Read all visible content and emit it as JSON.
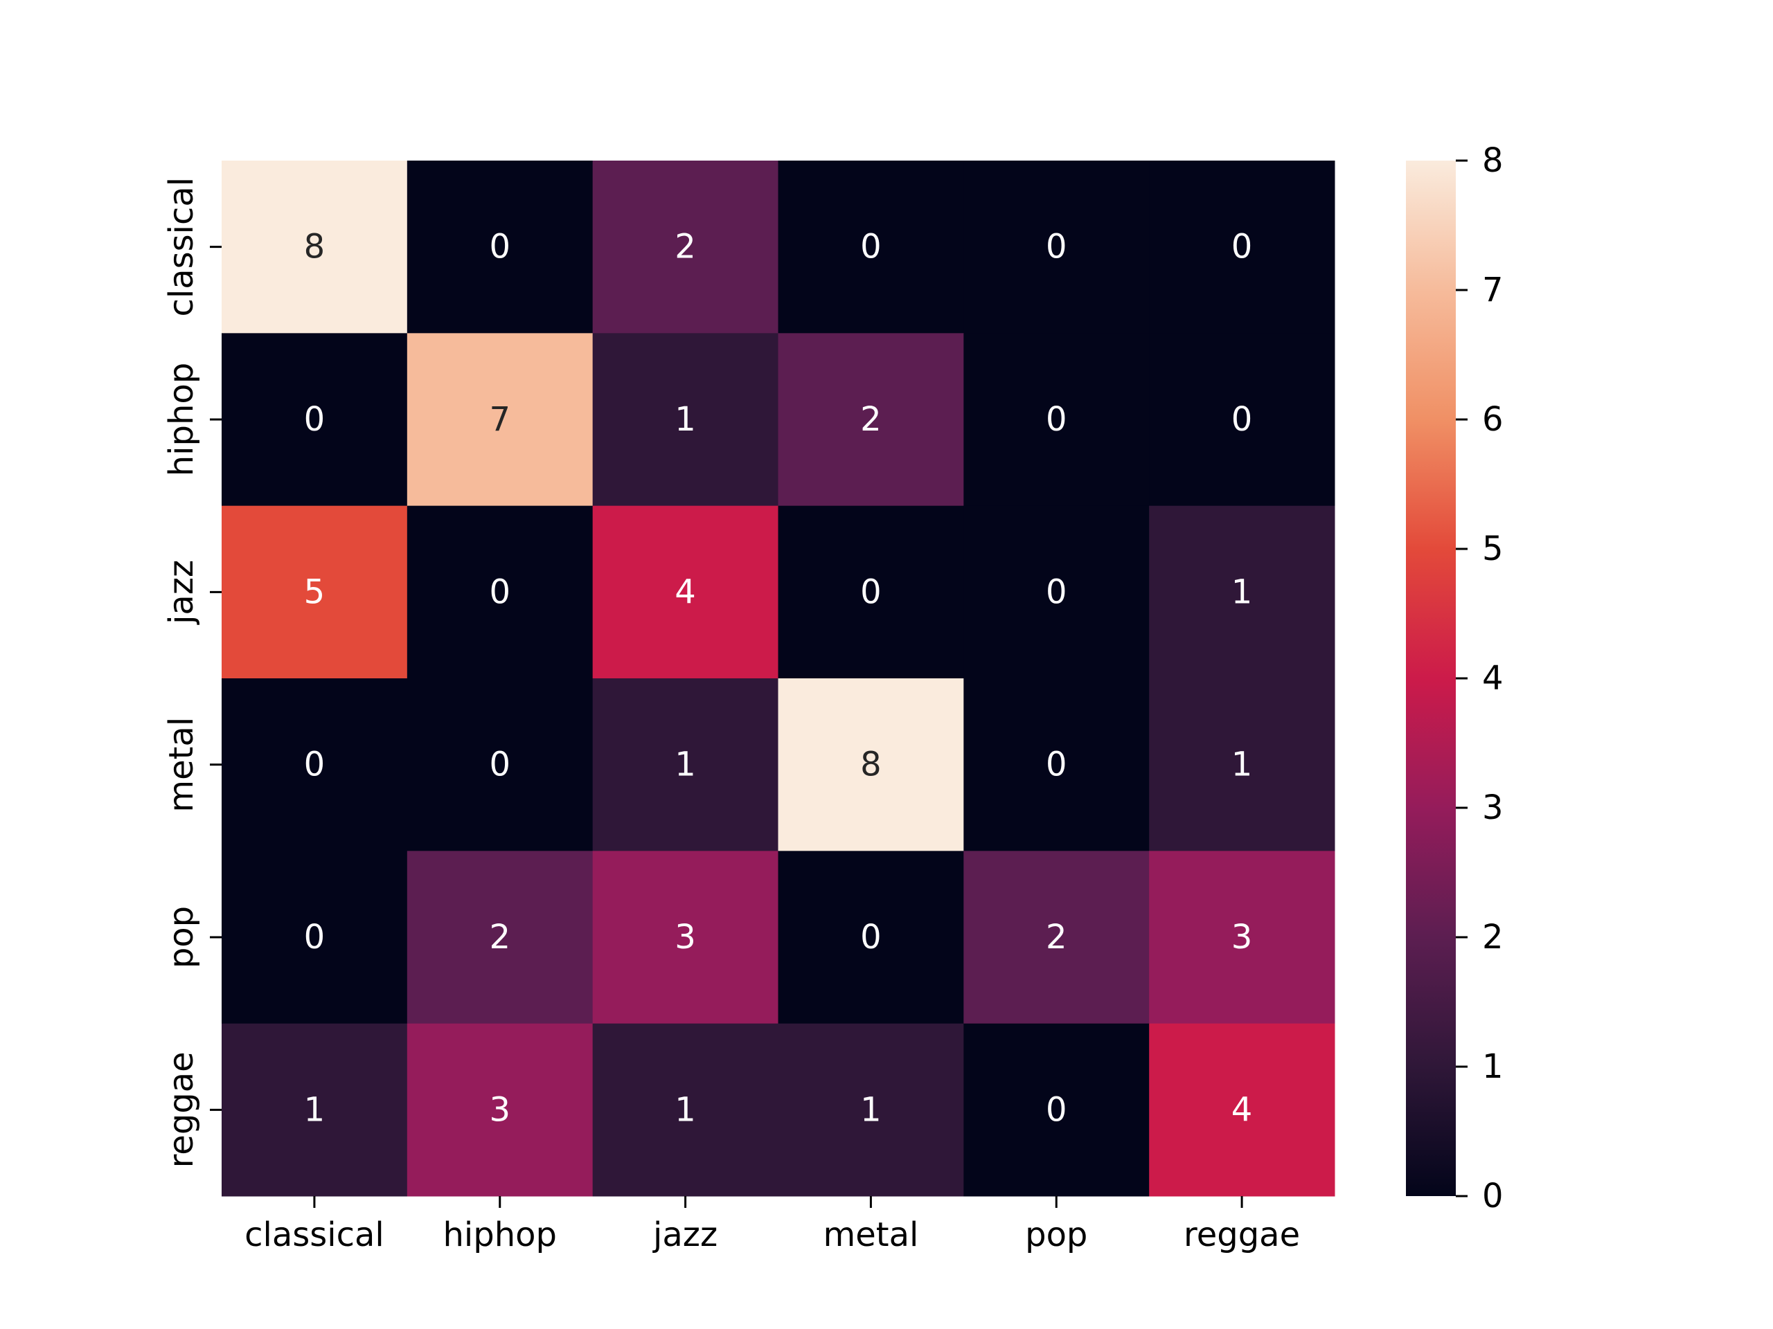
{
  "chart_data": {
    "type": "heatmap",
    "x_categories": [
      "classical",
      "hiphop",
      "jazz",
      "metal",
      "pop",
      "reggae"
    ],
    "y_categories": [
      "classical",
      "hiphop",
      "jazz",
      "metal",
      "pop",
      "reggae"
    ],
    "values": [
      [
        8,
        0,
        2,
        0,
        0,
        0
      ],
      [
        0,
        7,
        1,
        2,
        0,
        0
      ],
      [
        5,
        0,
        4,
        0,
        0,
        1
      ],
      [
        0,
        0,
        1,
        8,
        0,
        1
      ],
      [
        0,
        2,
        3,
        0,
        2,
        3
      ],
      [
        1,
        3,
        1,
        1,
        0,
        4
      ]
    ],
    "colorbar": {
      "min": 0,
      "max": 8,
      "ticks": [
        0,
        1,
        2,
        3,
        4,
        5,
        6,
        7,
        8
      ],
      "colormap": "rocket",
      "colors": [
        "#03051a",
        "#2f1738",
        "#5c1e51",
        "#951c5b",
        "#cc1b4a",
        "#e34a3a",
        "#f09065",
        "#f6bb9b",
        "#faebdd"
      ]
    },
    "annotations": true,
    "grid": false,
    "legend": "colorbar-right",
    "title": "",
    "xlabel": "",
    "ylabel": ""
  }
}
